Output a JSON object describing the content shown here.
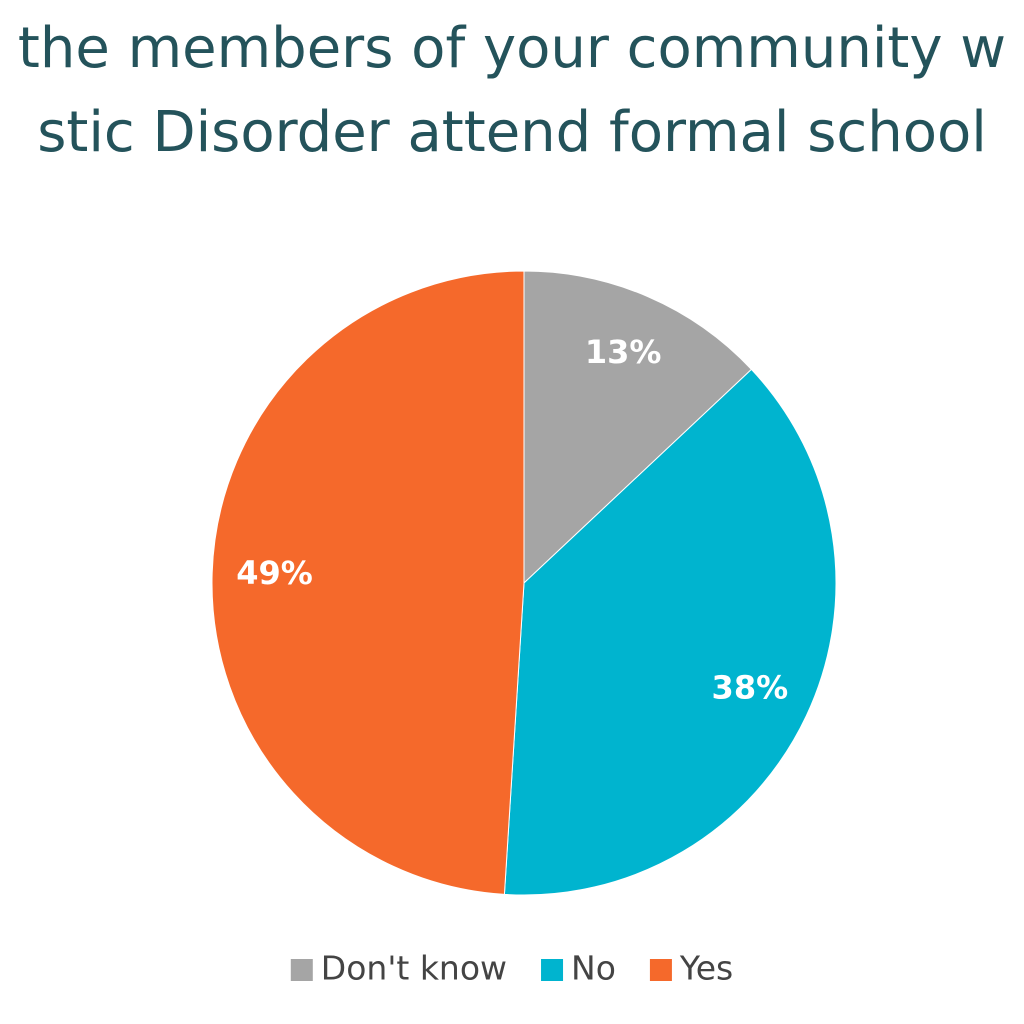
{
  "chart_data": {
    "type": "pie",
    "title": [
      "the members of your community w",
      "stic Disorder attend formal school"
    ],
    "categories": [
      "Don't know",
      "No",
      "Yes"
    ],
    "values": [
      13,
      38,
      49
    ],
    "value_labels": [
      "13%",
      "38%",
      "49%"
    ],
    "colors": [
      "#a5a5a5",
      "#00b4cf",
      "#f5692b"
    ],
    "legend": "bottom"
  }
}
